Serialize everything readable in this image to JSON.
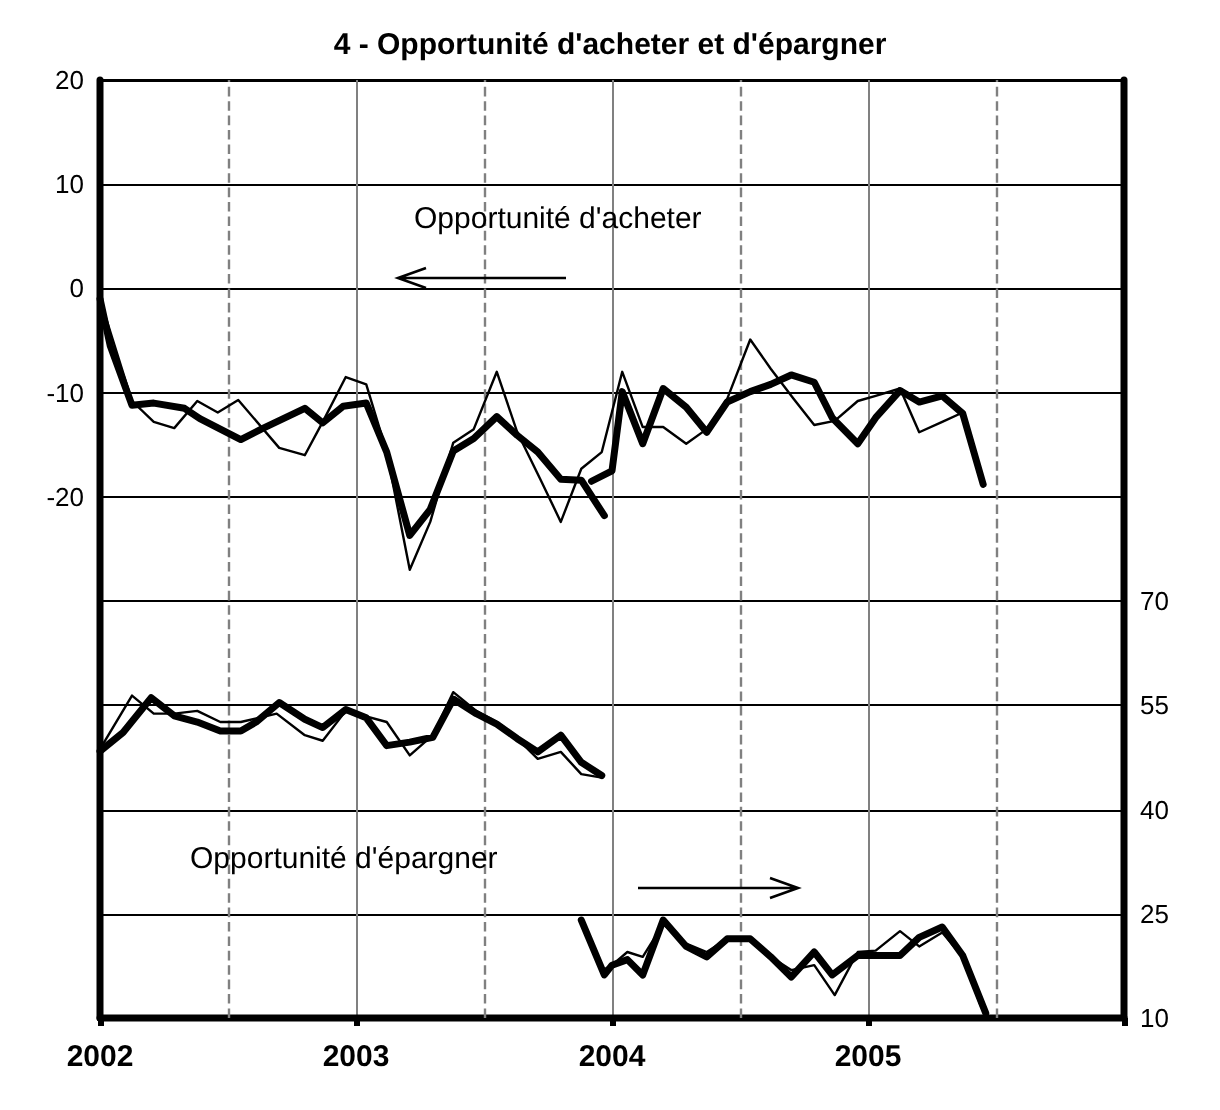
{
  "chart_data": {
    "type": "line",
    "title": "4 - Opportunité d'acheter et d'épargner",
    "xlim": [
      2002,
      2006
    ],
    "xticks": [
      2002,
      2003,
      2004,
      2005,
      {
        "value": 2006,
        "label": null
      }
    ],
    "ylim": [
      -70,
      20
    ],
    "yticks": [
      20,
      10,
      0,
      -10,
      -20
    ],
    "y2lim": [
      10,
      145
    ],
    "y2ticks": [
      10,
      25,
      40,
      55,
      70
    ],
    "grid": true,
    "marker": "none",
    "line_style": "solid",
    "ref_lines": [
      {
        "axis": "x",
        "value": 2002.5,
        "line_style": "dashed",
        "color": "#808080"
      },
      {
        "axis": "x",
        "value": 2003.5,
        "line_style": "dashed",
        "color": "#808080"
      },
      {
        "axis": "x",
        "value": 2004.5,
        "line_style": "dashed",
        "color": "#808080"
      },
      {
        "axis": "x",
        "value": 2005.5,
        "line_style": "dashed",
        "color": "#808080"
      }
    ],
    "annotations": [
      "Opportunité d'acheter",
      "Opportunité d'épargner"
    ],
    "series": [
      {
        "color": "#000000",
        "x": [
          2002.0,
          2002.04,
          2002.125,
          2002.21,
          2002.33,
          2002.39,
          2002.55,
          2002.63,
          2002.8,
          2002.87,
          2002.95,
          2003.04,
          2003.12,
          2003.21,
          2003.29,
          2003.38,
          2003.46,
          2003.55,
          2003.63,
          2003.71,
          2003.8,
          2003.88,
          2003.97
        ],
        "values": [
          -1,
          -5.5,
          -11.2,
          -11,
          -11.5,
          -12.5,
          -14.5,
          -13.5,
          -11.5,
          -12.9,
          -11.3,
          -11,
          -15.7,
          -23.7,
          -21.2,
          -15.6,
          -14.4,
          -12.3,
          -14.1,
          -15.7,
          -18.3,
          -18.4,
          -21.8
        ]
      },
      {
        "color": "#000000",
        "x": [
          2003.92,
          2004.0,
          2004.04,
          2004.12,
          2004.2,
          2004.29,
          2004.37,
          2004.45,
          2004.54,
          2004.62,
          2004.7,
          2004.79,
          2004.86,
          2004.96,
          2005.03,
          2005.125,
          2005.2,
          2005.29,
          2005.37,
          2005.45
        ],
        "values": [
          -18.5,
          -17.5,
          -9.9,
          -14.9,
          -9.6,
          -11.4,
          -13.8,
          -10.9,
          -9.9,
          -9.2,
          -8.3,
          -9,
          -12.4,
          -14.9,
          -12.4,
          -9.8,
          -10.9,
          -10.3,
          -12,
          -18.8
        ]
      },
      {
        "color": "#000000",
        "x": [
          2002.0,
          2002.125,
          2002.21,
          2002.29,
          2002.38,
          2002.46,
          2002.54,
          2002.7,
          2002.8,
          2002.87,
          2002.96,
          2003.04,
          2003.12,
          2003.21,
          2003.29,
          2003.38,
          2003.46,
          2003.55,
          2003.63,
          2003.72,
          2003.8,
          2003.88,
          2003.96,
          2004.04,
          2004.12,
          2004.2,
          2004.29,
          2004.37,
          2004.45,
          2004.54,
          2004.62,
          2004.71,
          2004.79,
          2004.87,
          2004.96,
          2005.03,
          2005.125,
          2005.2,
          2005.29,
          2005.37
        ],
        "values": [
          -1,
          -10.8,
          -12.8,
          -13.4,
          -10.8,
          -11.9,
          -10.7,
          -15.3,
          -16,
          -12.8,
          -8.5,
          -9.2,
          -15.7,
          -27,
          -22.4,
          -14.8,
          -13.5,
          -8,
          -13.8,
          -18.3,
          -22.4,
          -17.3,
          -15.7,
          -8,
          -13.3,
          -13.3,
          -14.9,
          -13.5,
          -10.6,
          -4.9,
          -7.7,
          -10.6,
          -13.1,
          -12.7,
          -10.8,
          -10.3,
          -9.6,
          -13.8,
          -12.8,
          -11.9
        ]
      },
      {
        "color": "#000000",
        "axis": "y2",
        "x": [
          2002.0,
          2002.09,
          2002.2,
          2002.29,
          2002.38,
          2002.47,
          2002.55,
          2002.61,
          2002.7,
          2002.8,
          2002.87,
          2002.96,
          2003.04,
          2003.12,
          2003.21,
          2003.3,
          2003.38,
          2003.47,
          2003.55,
          2003.63,
          2003.71,
          2003.8,
          2003.88,
          2003.96
        ],
        "values": [
          48.4,
          51.1,
          56.1,
          53.5,
          52.6,
          51.3,
          51.3,
          52.6,
          55.4,
          53,
          51.8,
          54.4,
          53.2,
          49.2,
          49.7,
          50.4,
          55.9,
          53.8,
          52.3,
          50.2,
          48.3,
          50.7,
          46.8,
          44.9
        ]
      },
      {
        "color": "#000000",
        "axis": "y2",
        "x": [
          2002.0,
          2002.125,
          2002.21,
          2002.29,
          2002.38,
          2002.47,
          2002.55,
          2002.69,
          2002.8,
          2002.87,
          2002.96,
          2003.12,
          2003.21,
          2003.3,
          2003.38,
          2003.47,
          2003.55,
          2003.63,
          2003.71,
          2003.8,
          2003.88,
          2003.96
        ],
        "values": [
          48.7,
          56.4,
          53.8,
          53.8,
          54.2,
          52.6,
          52.6,
          53.8,
          50.7,
          49.9,
          54.2,
          52.6,
          47.8,
          50.7,
          56.9,
          54.2,
          52.6,
          50.2,
          47.3,
          48.3,
          45.1,
          44.6
        ]
      },
      {
        "color": "#000000",
        "axis": "y2",
        "x": [
          2003.88,
          2003.97,
          2004.0,
          2004.06,
          2004.12,
          2004.2,
          2004.29,
          2004.37,
          2004.45,
          2004.54,
          2004.62,
          2004.7,
          2004.79,
          2004.86,
          2004.96,
          2005.03,
          2005.125,
          2005.2,
          2005.29,
          2005.37,
          2005.46
        ],
        "values": [
          24.1,
          16.2,
          17.6,
          18.4,
          16.2,
          24.1,
          20.3,
          18.8,
          21.4,
          21.4,
          18.8,
          15.9,
          19.5,
          16.2,
          19,
          19,
          19,
          21.6,
          23.1,
          19,
          10.7
        ]
      },
      {
        "color": "#000000",
        "axis": "y2",
        "x": [
          2003.97,
          2004.0,
          2004.06,
          2004.12,
          2004.2,
          2004.29,
          2004.37,
          2004.45,
          2004.54,
          2004.62,
          2004.7,
          2004.79,
          2004.87,
          2004.96,
          2005.03,
          2005.125,
          2005.2,
          2005.29,
          2005.37,
          2005.44
        ],
        "values": [
          17,
          17.6,
          19.5,
          18.8,
          23.5,
          20.7,
          19.5,
          21.4,
          21.4,
          18.8,
          16.9,
          17.6,
          13.3,
          19.5,
          19.7,
          22.5,
          20.3,
          22.3,
          18.8,
          11.8
        ]
      }
    ]
  }
}
